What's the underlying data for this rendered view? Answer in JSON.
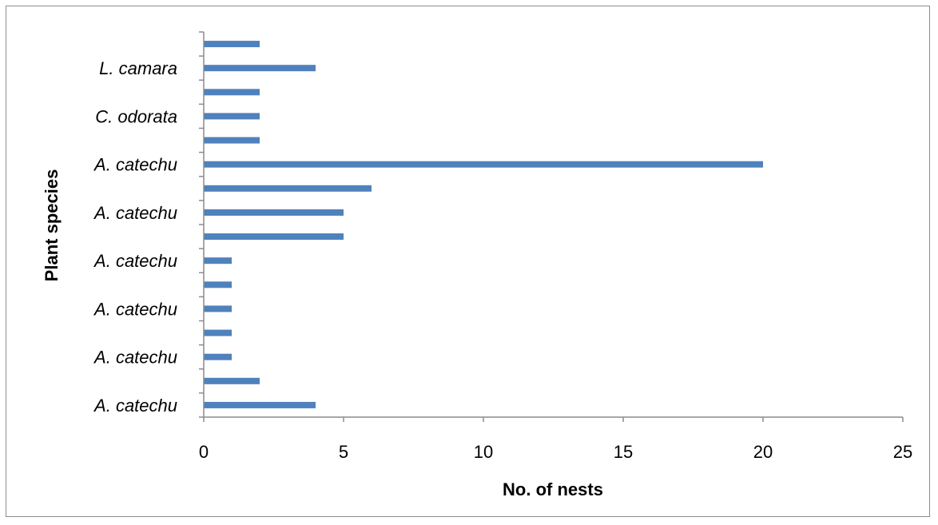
{
  "chart_data": {
    "type": "bar",
    "orientation": "horizontal",
    "xlabel": "No. of nests",
    "ylabel": "Plant species",
    "xlim": [
      0,
      25
    ],
    "xticks": [
      0,
      5,
      10,
      15,
      20,
      25
    ],
    "grid": false,
    "bar_color": "#4f81bd",
    "categories": [
      "A. catechu",
      "",
      "A. catechu",
      "",
      "A. catechu",
      "",
      "A. catechu",
      "",
      "A. catechu",
      "",
      "A. catechu",
      "",
      "C. odorata",
      "",
      "L. camara",
      ""
    ],
    "values": [
      4,
      2,
      1,
      1,
      1,
      1,
      1,
      5,
      5,
      6,
      20,
      2,
      2,
      2,
      4,
      2
    ]
  }
}
